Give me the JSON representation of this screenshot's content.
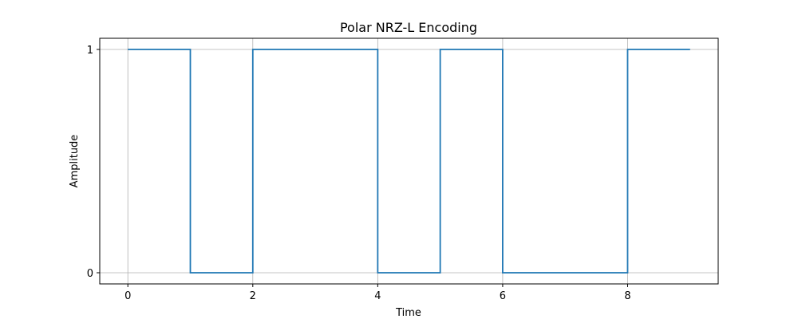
{
  "chart_data": {
    "type": "line",
    "step": "post",
    "title": "Polar NRZ-L Encoding",
    "xlabel": "Time",
    "ylabel": "Amplitude",
    "xlim": [
      -0.45,
      9.45
    ],
    "ylim": [
      -0.05,
      1.05
    ],
    "xticks": [
      0,
      2,
      4,
      6,
      8
    ],
    "yticks": [
      0,
      1
    ],
    "grid": true,
    "series": [
      {
        "color": "#1f77b4",
        "x": [
          0,
          1,
          2,
          3,
          4,
          5,
          6,
          7,
          8,
          9
        ],
        "y": [
          1,
          0,
          1,
          1,
          0,
          1,
          0,
          0,
          1,
          1
        ]
      }
    ]
  }
}
